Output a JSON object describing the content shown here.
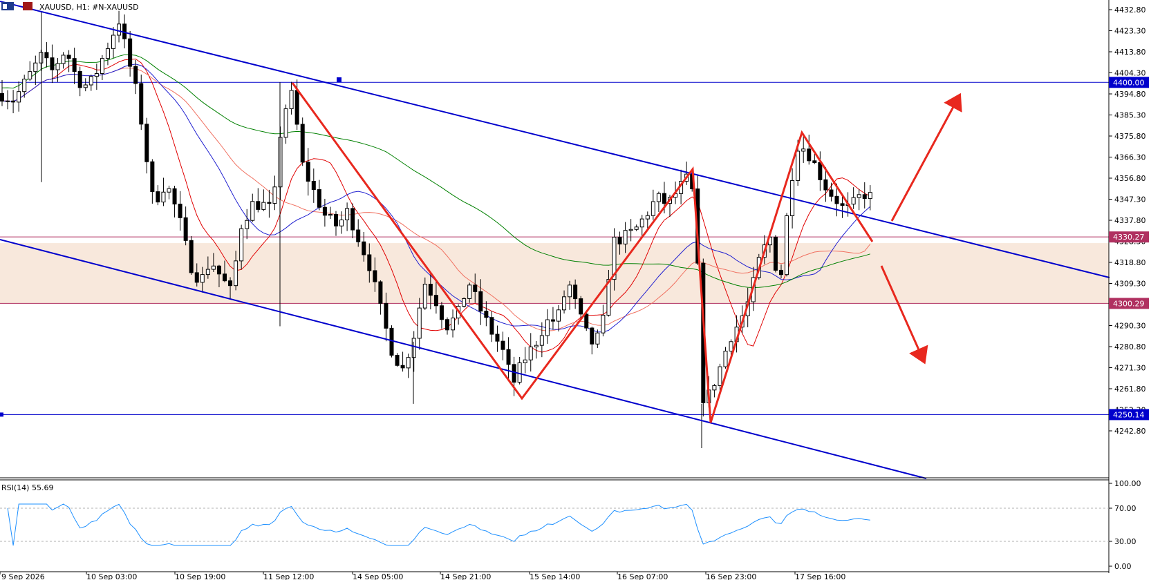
{
  "window": {
    "title": "XAUUSD, H1:  #N-XAUUSD"
  },
  "rsi": {
    "label": "RSI(14) 55.69"
  },
  "colors": {
    "up_candle": "#ffffff",
    "down_candle": "#000000",
    "channel": "#0000cc",
    "pattern": "#e8281e",
    "zone": "#f8e8dc",
    "ma_fast": "#e00000",
    "ma_mid": "#f07060",
    "ma_blue": "#2020d0",
    "ma_slow": "#008000",
    "rsi_line": "#1e90ff",
    "level_magenta": "#b03060"
  },
  "chart_data": {
    "type": "candlestick",
    "symbol": "XAUUSD",
    "timeframe": "H1",
    "price_axis": {
      "range": [
        4233.0,
        4437.0
      ],
      "ticks": [
        4432.8,
        4423.3,
        4413.8,
        4404.3,
        4394.8,
        4385.3,
        4375.8,
        4366.3,
        4356.8,
        4347.3,
        4337.8,
        4328.3,
        4318.8,
        4309.3,
        4290.3,
        4280.8,
        4271.3,
        4261.8,
        4252.3,
        4242.8
      ]
    },
    "time_axis": {
      "labels": [
        "9 Sep 2026",
        "10 Sep 03:00",
        "10 Sep 19:00",
        "11 Sep 12:00",
        "14 Sep 05:00",
        "14 Sep 21:00",
        "15 Sep 14:00",
        "16 Sep 07:00",
        "16 Sep 23:00",
        "17 Sep 16:00"
      ]
    },
    "levels": [
      {
        "price": 4400.0,
        "label": "4400.00",
        "color": "#0000cc"
      },
      {
        "price": 4330.27,
        "label": "4330.27",
        "color": "#b03060"
      },
      {
        "price": 4300.29,
        "label": "4300.29",
        "color": "#b03060"
      },
      {
        "price": 4250.14,
        "label": "4250.14",
        "color": "#0000cc"
      }
    ],
    "zone": {
      "from": 4300.29,
      "to": 4327.5
    },
    "rsi": {
      "period": 14,
      "last": 55.69,
      "range": [
        0,
        100
      ],
      "ticks": [
        100.0,
        70.0,
        30.0,
        0.0
      ],
      "levels": [
        70,
        30
      ]
    }
  }
}
